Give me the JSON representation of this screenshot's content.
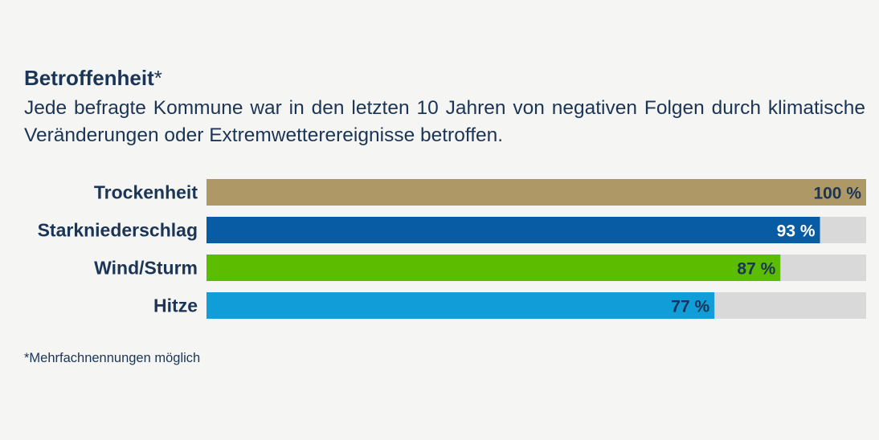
{
  "header": {
    "title": "Betroffenheit",
    "title_suffix": "*",
    "subtitle": "Jede befragte Kommune war in den letzten 10 Jahren von negativen Folgen durch klimatische Veränderungen  oder Extremwetterereignisse betroffen."
  },
  "footnote": "*Mehrfachnennungen möglich",
  "colors": {
    "text": "#1b3556",
    "track": "#d9d9d9",
    "background": "#f5f5f3"
  },
  "chart_data": {
    "type": "bar",
    "orientation": "horizontal",
    "categories": [
      "Trockenheit",
      "Starkniederschlag",
      "Wind/Sturm",
      "Hitze"
    ],
    "values": [
      100,
      93,
      87,
      77
    ],
    "value_labels": [
      "100 %",
      "93 %",
      "87 %",
      "77 %"
    ],
    "bar_colors": [
      "#ae9966",
      "#075ca3",
      "#5bbc00",
      "#119dd8"
    ],
    "label_colors": [
      "#1b3556",
      "#ffffff",
      "#1b3556",
      "#1b3556"
    ],
    "xlim": [
      0,
      100
    ],
    "grid": false,
    "legend": "none"
  }
}
